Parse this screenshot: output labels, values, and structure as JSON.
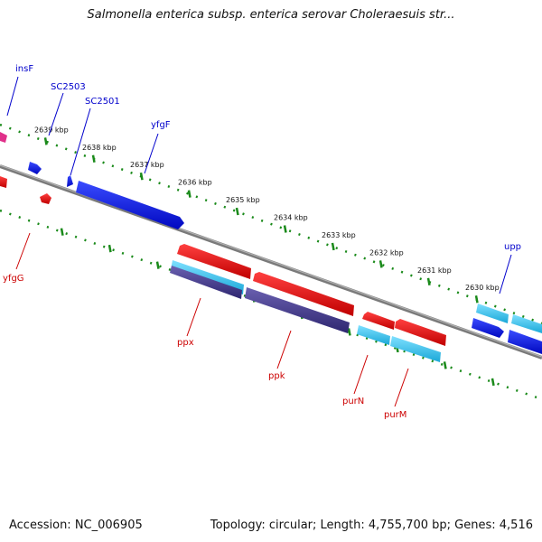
{
  "title": "Salmonella enterica subsp. enterica serovar Choleraesuis str...",
  "footer": {
    "accession": "Accession: NC_006905",
    "summary": "Topology: circular; Length: 4,755,700 bp; Genes: 4,516"
  },
  "colors": {
    "forward_gene": "#0a14e6",
    "reverse_gene": "#ee1111",
    "light_blue_gene": "#33c8ee",
    "purple_gene": "#4a3f8f",
    "pink_gene": "#e0308a",
    "backbone": "#8a8a8a",
    "tick": "#1a8a1a",
    "forward_label": "#0000cc",
    "reverse_label": "#cc0000"
  },
  "ticks": [
    {
      "label": "2639 kbp"
    },
    {
      "label": "2638 kbp"
    },
    {
      "label": "2637 kbp"
    },
    {
      "label": "2636 kbp"
    },
    {
      "label": "2635 kbp"
    },
    {
      "label": "2634 kbp"
    },
    {
      "label": "2633 kbp"
    },
    {
      "label": "2632 kbp"
    },
    {
      "label": "2631 kbp"
    },
    {
      "label": "2630 kbp"
    }
  ],
  "gene_labels": [
    {
      "name": "insF",
      "strand": "forward"
    },
    {
      "name": "SC2503",
      "strand": "forward"
    },
    {
      "name": "SC2501",
      "strand": "forward"
    },
    {
      "name": "yfgF",
      "strand": "forward"
    },
    {
      "name": "upp",
      "strand": "forward"
    },
    {
      "name": "yfgG",
      "strand": "reverse"
    },
    {
      "name": "ppx",
      "strand": "reverse"
    },
    {
      "name": "ppk",
      "strand": "reverse"
    },
    {
      "name": "purN",
      "strand": "reverse"
    },
    {
      "name": "purM",
      "strand": "reverse"
    }
  ]
}
